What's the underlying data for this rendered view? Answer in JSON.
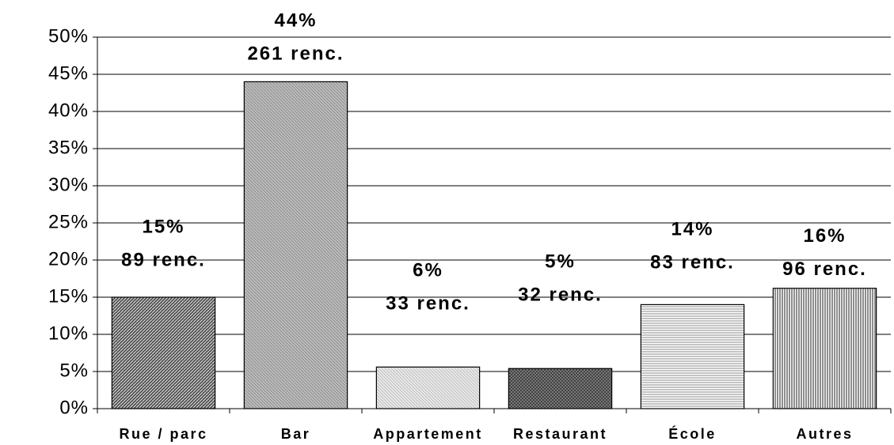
{
  "chart_data": {
    "type": "bar",
    "categories": [
      "Rue / parc",
      "Bar",
      "Appartement",
      "Restaurant",
      "École",
      "Autres"
    ],
    "values": [
      15,
      44,
      5.6,
      5.4,
      14,
      16.2
    ],
    "value_labels": [
      "15%",
      "44%",
      "6%",
      "5%",
      "14%",
      "16%"
    ],
    "count_labels": [
      "89 renc.",
      "261 renc.",
      "33 renc.",
      "32 renc.",
      "83 renc.",
      "96 renc."
    ],
    "ylim": [
      0,
      50
    ],
    "yticks": [
      {
        "value": 0,
        "label": "0%"
      },
      {
        "value": 5,
        "label": "5%"
      },
      {
        "value": 10,
        "label": "10%"
      },
      {
        "value": 15,
        "label": "15%"
      },
      {
        "value": 20,
        "label": "20%"
      },
      {
        "value": 25,
        "label": "25%"
      },
      {
        "value": 30,
        "label": "30%"
      },
      {
        "value": 35,
        "label": "35%"
      },
      {
        "value": 40,
        "label": "40%"
      },
      {
        "value": 45,
        "label": "45%"
      },
      {
        "value": 50,
        "label": "50%"
      }
    ],
    "grid": true
  }
}
